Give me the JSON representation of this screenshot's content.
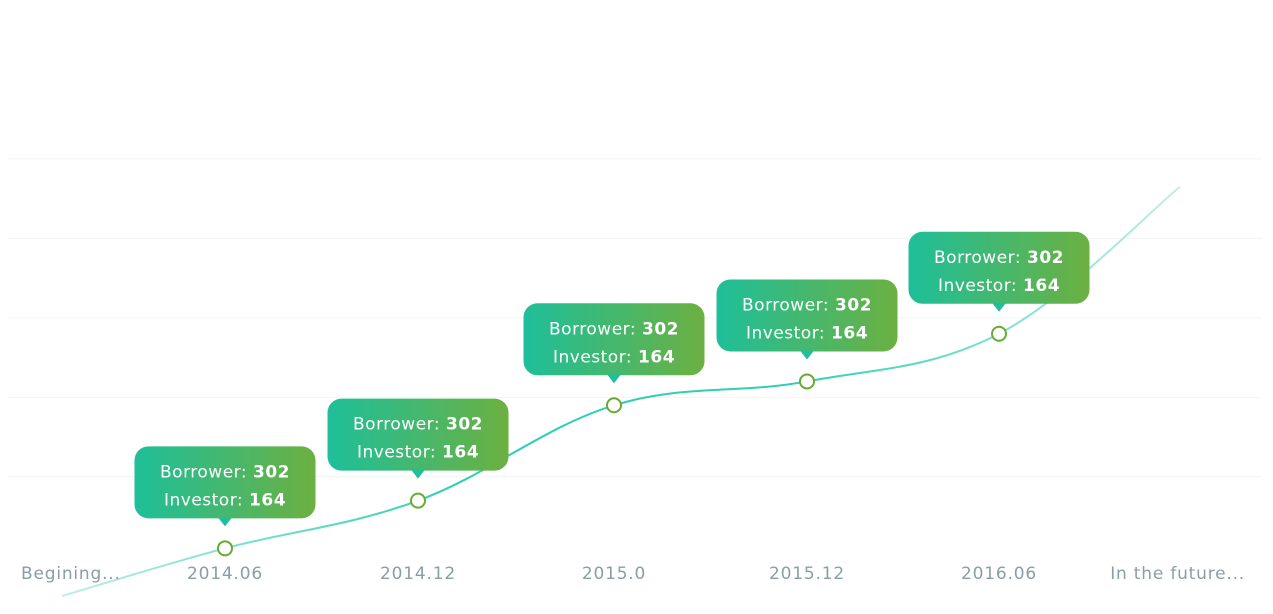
{
  "chart_data": {
    "type": "line",
    "title": "",
    "xlabel": "",
    "ylabel": "",
    "categories": [
      "Begining...",
      "2014.06",
      "2014.12",
      "2015.0",
      "2015.12",
      "2016.06",
      "In the future..."
    ],
    "points": [
      {
        "label": "2014.06",
        "y": 1.2,
        "borrower": "302",
        "investor": "164"
      },
      {
        "label": "2014.12",
        "y": 2.4,
        "borrower": "302",
        "investor": "164"
      },
      {
        "label": "2015.0",
        "y": 4.8,
        "borrower": "302",
        "investor": "164"
      },
      {
        "label": "2015.12",
        "y": 5.4,
        "borrower": "302",
        "investor": "164"
      },
      {
        "label": "2016.06",
        "y": 6.6,
        "borrower": "302",
        "investor": "164"
      }
    ],
    "start_y": 0,
    "end_y": 10.3,
    "ylim": [
      0,
      15
    ],
    "grid": true,
    "tooltip": {
      "borrower_label": "Borrower:",
      "investor_label": "Investor:"
    },
    "colors": {
      "tooltip_start": "#1ebf9a",
      "tooltip_end": "#6cb041",
      "line": "#2ecfb3",
      "line_faded": "#bfeee5",
      "marker_stroke": "#68aa32",
      "axis_text": "#8a9ea3",
      "grid": "#f1f4f4"
    }
  }
}
